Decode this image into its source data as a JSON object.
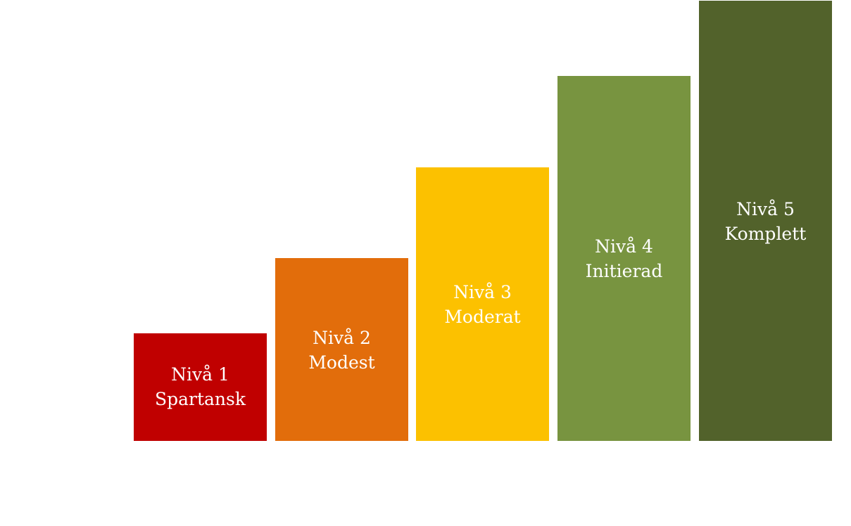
{
  "steps": [
    {
      "level": "Nivå 1",
      "name": "Spartansk",
      "color": "#C00000"
    },
    {
      "level": "Nivå 2",
      "name": "Modest",
      "color": "#E26D0B"
    },
    {
      "level": "Nivå 3",
      "name": "Moderat",
      "color": "#FCC100"
    },
    {
      "level": "Nivå 4",
      "name": "Initierad",
      "color": "#789440"
    },
    {
      "level": "Nivå 5",
      "name": "Komplett",
      "color": "#52622B"
    }
  ]
}
